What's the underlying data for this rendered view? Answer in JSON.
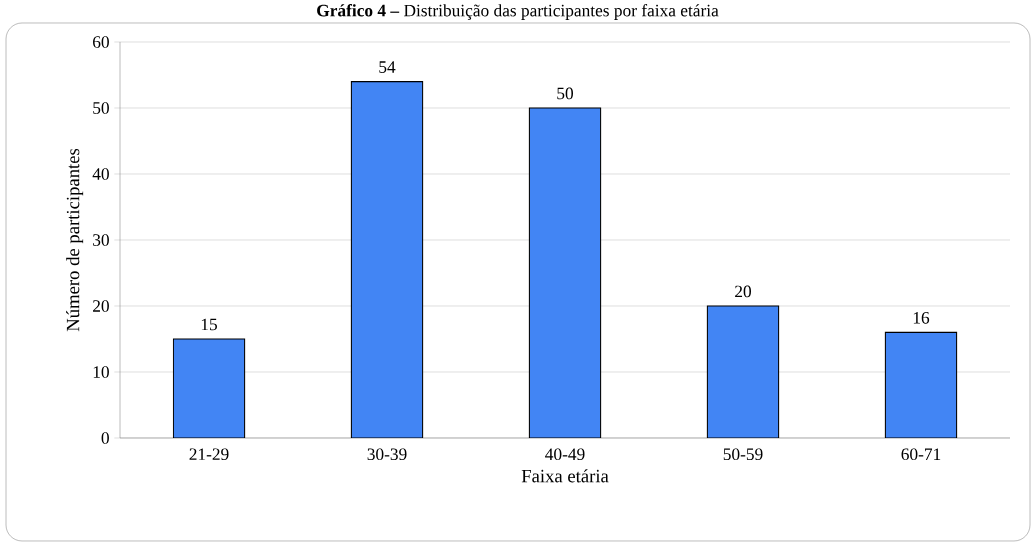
{
  "chart_data": {
    "type": "bar",
    "title": "**Gráfico 4 –** Distribuição das participantes por faixa etária",
    "xlabel": "Faixa etária",
    "ylabel": "Número de participantes",
    "categories": [
      "21-29",
      "30-39",
      "40-49",
      "50-59",
      "60-71"
    ],
    "values": [
      15,
      54,
      50,
      20,
      16
    ],
    "color": "#4285f4",
    "ylim": [
      0,
      60
    ],
    "yticks": [
      0,
      10,
      20,
      30,
      40,
      50,
      60
    ],
    "grid": "y",
    "data_labels": true
  }
}
